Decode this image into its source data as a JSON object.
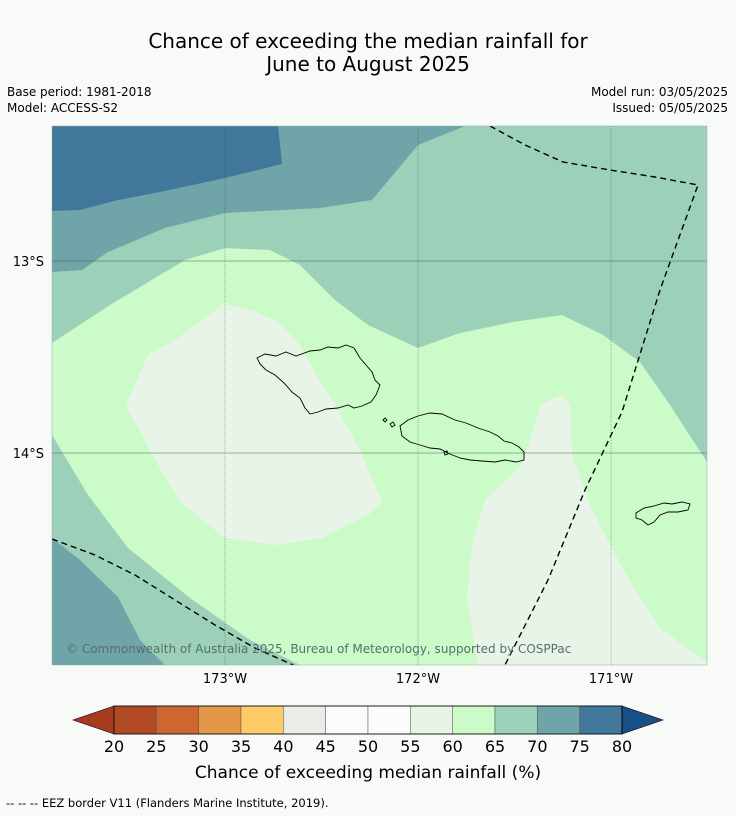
{
  "title": {
    "line1": "Chance of exceeding the median rainfall for",
    "line2": "June to August 2025"
  },
  "meta": {
    "base_period": "Base period: 1981-2018",
    "model": "Model: ACCESS-S2",
    "model_run": "Model run: 03/05/2025",
    "issued": "Issued: 05/05/2025"
  },
  "map": {
    "lat_labels": [
      "13°S",
      "14°S"
    ],
    "lon_labels": [
      "173°W",
      "172°W",
      "171°W"
    ],
    "copyright": "© Commonwealth of Australia 2025, Bureau of Meteorology, supported by COSPPac",
    "land_features": [
      "Savai'i",
      "Upolu",
      "Tutuila"
    ],
    "boundary": "EEZ border"
  },
  "colorbar": {
    "ticks": [
      "20",
      "25",
      "30",
      "35",
      "40",
      "45",
      "50",
      "55",
      "60",
      "65",
      "70",
      "75",
      "80"
    ],
    "colors": [
      "#a83a1e",
      "#b24a23",
      "#cf6531",
      "#e29848",
      "#fecb66",
      "#ecebe6",
      "#fafbfa",
      "#fbfcfb",
      "#e8f4e6",
      "#cbfbc8",
      "#9dd0b9",
      "#6fa4a8",
      "#40779a",
      "#1a4f86"
    ],
    "title": "Chance of exceeding median rainfall (%)"
  },
  "footnote": "--  --  -- EEZ border V11 (Flanders Marine Institute, 2019)."
}
